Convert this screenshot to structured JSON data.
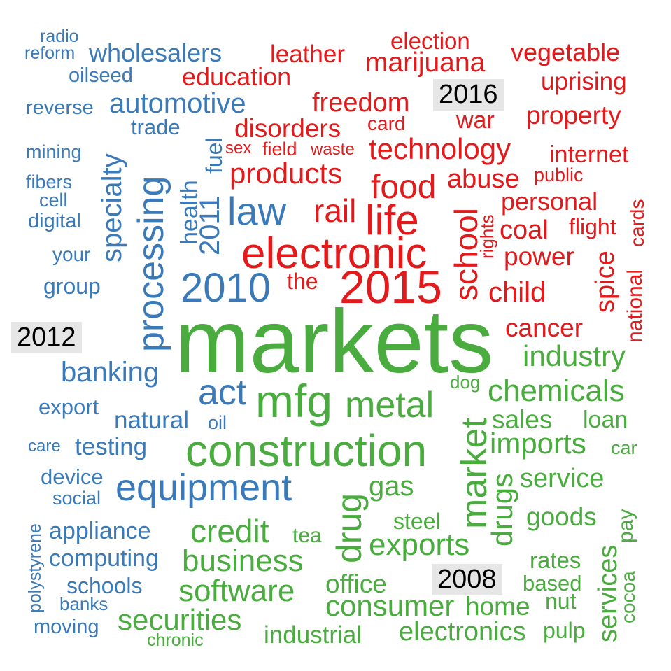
{
  "colors": {
    "blue": "#3a7ab8",
    "red": "#e31a1c",
    "green": "#4aac3f",
    "label_bg": "#e6e6e6"
  },
  "year_labels": {
    "y2016": "2016",
    "y2012": "2012",
    "y2008": "2008"
  },
  "words": {
    "blue": {
      "radio": "radio",
      "reform": "reform",
      "wholesalers": "wholesalers",
      "oilseed": "oilseed",
      "automotive": "automotive",
      "reverse": "reverse",
      "trade": "trade",
      "mining": "mining",
      "fibers": "fibers",
      "cell": "cell",
      "digital": "digital",
      "your": "your",
      "group": "group",
      "specialty": "specialty",
      "processing": "processing",
      "health": "health",
      "fuel": "fuel",
      "y2011": "2011",
      "law": "law",
      "y2010": "2010",
      "banking": "banking",
      "act": "act",
      "export": "export",
      "natural": "natural",
      "oil": "oil",
      "care": "care",
      "testing": "testing",
      "device": "device",
      "equipment": "equipment",
      "social": "social",
      "polystyrene": "polystyrene",
      "appliance": "appliance",
      "computing": "computing",
      "schools": "schools",
      "banks": "banks",
      "moving": "moving"
    },
    "red": {
      "election": "election",
      "leather": "leather",
      "marijuana": "marijuana",
      "vegetable": "vegetable",
      "education": "education",
      "uprising": "uprising",
      "freedom": "freedom",
      "card": "card",
      "war": "war",
      "property": "property",
      "disorders": "disorders",
      "sex": "sex",
      "field": "field",
      "waste": "waste",
      "technology": "technology",
      "internet": "internet",
      "products": "products",
      "food": "food",
      "abuse": "abuse",
      "public": "public",
      "rail": "rail",
      "life": "life",
      "personal": "personal",
      "school": "school",
      "rights": "rights",
      "coal": "coal",
      "flight": "flight",
      "national": "national",
      "cards": "cards",
      "electronic": "electronic",
      "power": "power",
      "the": "the",
      "y2015": "2015",
      "spice": "spice",
      "child": "child",
      "cancer": "cancer"
    },
    "green": {
      "markets": "markets",
      "industry": "industry",
      "dog": "dog",
      "chemicals": "chemicals",
      "mfg": "mfg",
      "metal": "metal",
      "market": "market",
      "sales": "sales",
      "loan": "loan",
      "construction": "construction",
      "imports": "imports",
      "car": "car",
      "service": "service",
      "gas": "gas",
      "drugs": "drugs",
      "drug": "drug",
      "goods": "goods",
      "pay": "pay",
      "steel": "steel",
      "credit": "credit",
      "tea": "tea",
      "exports": "exports",
      "business": "business",
      "rates": "rates",
      "services": "services",
      "based": "based",
      "office": "office",
      "cocoa": "cocoa",
      "software": "software",
      "consumer": "consumer",
      "home": "home",
      "nut": "nut",
      "securities": "securities",
      "industrial": "industrial",
      "electronics": "electronics",
      "pulp": "pulp",
      "chronic": "chronic"
    }
  }
}
